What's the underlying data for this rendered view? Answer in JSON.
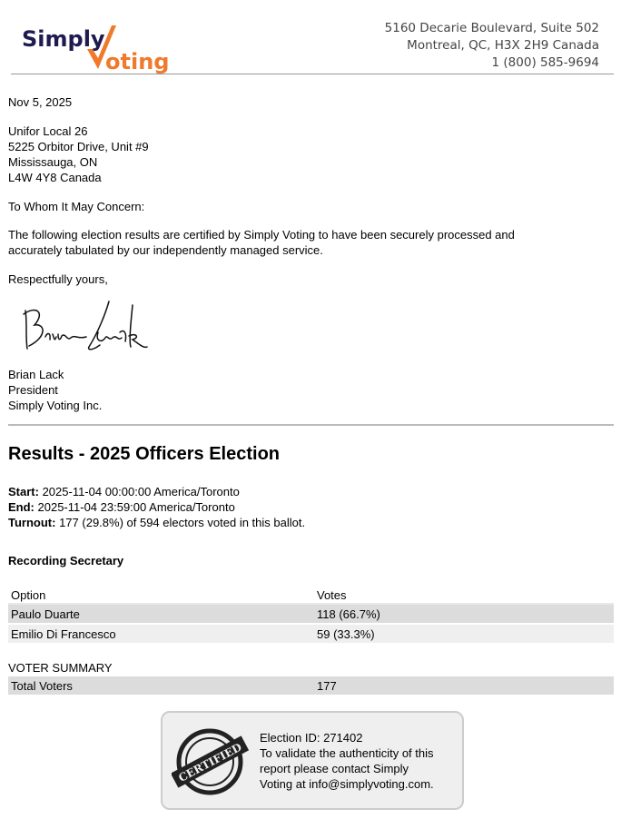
{
  "header": {
    "logo": {
      "word1": "Simply",
      "word2": "Voting",
      "colors": {
        "dark": "#1f1a4f",
        "orange": "#f07a2b"
      }
    },
    "address_lines": [
      "5160 Decarie Boulevard, Suite 502",
      "Montreal, QC, H3X 2H9 Canada",
      "1 (800) 585-9694"
    ]
  },
  "letter": {
    "date": "Nov 5, 2025",
    "recipient_lines": [
      "Unifor Local 26",
      "5225 Orbitor Drive, Unit #9",
      "Mississauga, ON",
      "L4W 4Y8 Canada"
    ],
    "salutation": "To Whom It May Concern:",
    "body_lines": [
      "The following election results are certified by Simply Voting to have been securely processed and",
      "accurately tabulated by our independently managed service."
    ],
    "closing": "Respectfully yours,",
    "signature": "Brian Lack",
    "signer_lines": [
      "Brian Lack",
      "President",
      "Simply Voting Inc."
    ]
  },
  "results": {
    "title": "Results - 2025 Officers Election",
    "start_label": "Start:",
    "start_value": " 2025-11-04 00:00:00 America/Toronto",
    "end_label": "End:",
    "end_value": " 2025-11-04 23:59:00 America/Toronto",
    "turnout_label": "Turnout:",
    "turnout_value": " 177 (29.8%) of 594 electors voted in this ballot.",
    "question": "Recording Secretary",
    "columns": [
      "Option",
      "Votes"
    ],
    "rows": [
      {
        "option": "Paulo Duarte",
        "votes": "118 (66.7%)"
      },
      {
        "option": "Emilio Di Francesco",
        "votes": "59 (33.3%)"
      }
    ],
    "summary_title": "VOTER SUMMARY",
    "summary_rows": [
      {
        "label": "Total Voters",
        "value": "177"
      }
    ]
  },
  "certificate": {
    "stamp_text": "CERTIFIED",
    "lines": [
      "Election ID: 271402",
      "To validate the authenticity of this",
      "report please contact Simply",
      "Voting at info@simplyvoting.com."
    ]
  }
}
